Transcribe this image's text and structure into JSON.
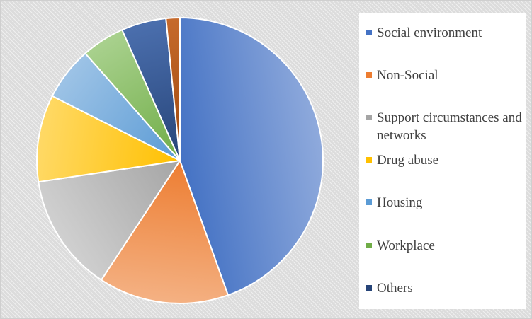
{
  "chart_data": {
    "type": "pie",
    "title": "",
    "legend_position": "right",
    "slices": [
      {
        "label": "Social environment",
        "value": 45.7,
        "color": "#4472c4",
        "color_light": "#8faadc"
      },
      {
        "label": "Non-Social",
        "value": 15.1,
        "color": "#ed7d31",
        "color_light": "#f4b183"
      },
      {
        "label": "Support circumstances and networks",
        "value": 13.7,
        "color": "#a5a5a5",
        "color_light": "#d0d0d0"
      },
      {
        "label": "Drug abuse",
        "value": 10.1,
        "color": "#ffc000",
        "color_light": "#ffd966"
      },
      {
        "label": "Housing",
        "value": 6.2,
        "color": "#5b9bd5",
        "color_light": "#9dc3e6"
      },
      {
        "label": "Workplace",
        "value": 5.0,
        "color": "#70ad47",
        "color_light": "#a9d18e"
      },
      {
        "label": "Others",
        "value": 5.2,
        "color": "#264478",
        "color_light": "#4b6fae"
      },
      {
        "label": "",
        "value": 1.6,
        "color": "#9e480e",
        "color_light": "#c66a2c"
      }
    ],
    "legend_entries": [
      {
        "label": "Social environment",
        "color": "#4472c4"
      },
      {
        "label": "Non-Social",
        "color": "#ed7d31"
      },
      {
        "label": "Support circumstances and networks",
        "color": "#a5a5a5"
      },
      {
        "label": "Drug abuse",
        "color": "#ffc000"
      },
      {
        "label": "Housing",
        "color": "#5b9bd5"
      },
      {
        "label": "Workplace",
        "color": "#70ad47"
      },
      {
        "label": "Others",
        "color": "#264478"
      }
    ]
  }
}
